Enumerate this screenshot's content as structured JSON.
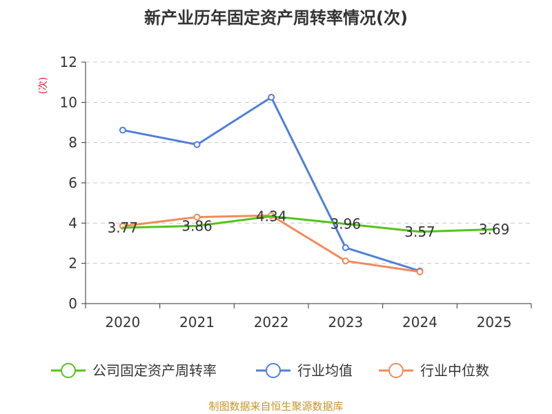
{
  "chart_data": {
    "type": "line",
    "title": "新产业历年固定资产周转率情况(次)",
    "xlabel": "",
    "ylabel": "(次)",
    "categories": [
      "2020",
      "2021",
      "2022",
      "2023",
      "2024",
      "2025"
    ],
    "ylim": [
      0,
      12
    ],
    "yticks": [
      0,
      2,
      4,
      6,
      8,
      10,
      12
    ],
    "grid": true,
    "legend_position": "bottom",
    "series": [
      {
        "name": "公司固定资产周转率",
        "color": "#52c41a",
        "values": [
          3.77,
          3.86,
          4.34,
          3.96,
          3.57,
          3.69
        ],
        "labels": [
          "3.77",
          "3.86",
          "4.34",
          "3.96",
          "3.57",
          "3.69"
        ],
        "show_markers": false
      },
      {
        "name": "行业均值",
        "color": "#4f7fd9",
        "values": [
          8.62,
          7.9,
          10.25,
          2.78,
          1.62,
          null
        ],
        "show_markers": true
      },
      {
        "name": "行业中位数",
        "color": "#f28b59",
        "values": [
          3.85,
          4.3,
          4.38,
          2.12,
          1.58,
          null
        ],
        "show_markers": true
      }
    ]
  },
  "source": "制图数据来自恒生聚源数据库"
}
